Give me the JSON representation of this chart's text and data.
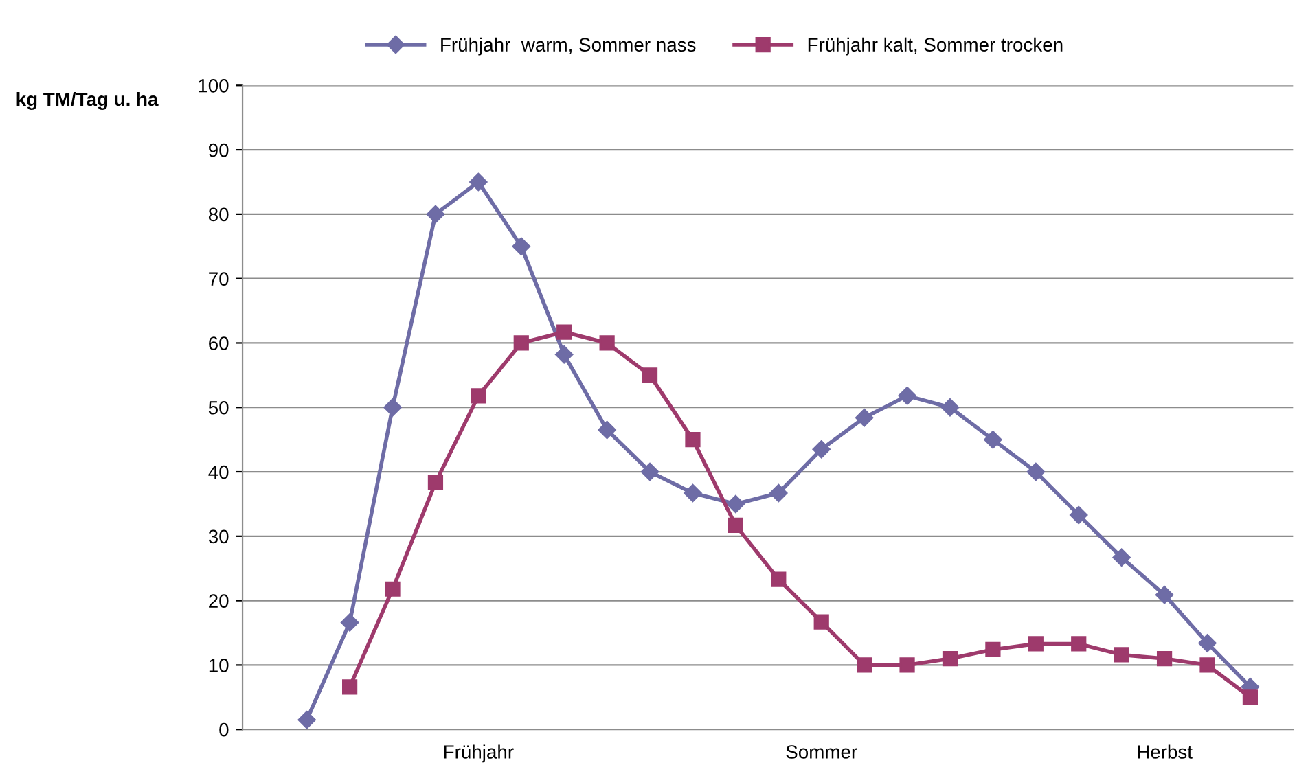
{
  "chart_data": {
    "type": "line",
    "ylabel": "kg TM/Tag u. ha",
    "categories": [
      null,
      null,
      null,
      null,
      "Frühjahr",
      null,
      null,
      null,
      null,
      null,
      null,
      null,
      "Sommer",
      null,
      null,
      null,
      null,
      null,
      null,
      null,
      "Herbst",
      null,
      null
    ],
    "series": [
      {
        "name": "Frühjahr  warm, Sommer nass",
        "color": "#6e6ca6",
        "marker": "diamond",
        "values": [
          1.5,
          16.6,
          50,
          80,
          85,
          75,
          58.2,
          46.5,
          40,
          36.7,
          35,
          36.7,
          43.5,
          48.4,
          51.8,
          50,
          45,
          40,
          33.3,
          26.7,
          20.9,
          13.4,
          6.6
        ]
      },
      {
        "name": "Frühjahr kalt, Sommer trocken",
        "color": "#9e3a6c",
        "marker": "square",
        "values": [
          null,
          6.6,
          21.8,
          38.3,
          51.8,
          60,
          61.7,
          60,
          55,
          45,
          31.7,
          23.3,
          16.7,
          10,
          10,
          11,
          12.4,
          13.3,
          13.3,
          11.6,
          11,
          10,
          5
        ]
      }
    ],
    "ylim": [
      0,
      100
    ],
    "yticks": [
      0,
      10,
      20,
      30,
      40,
      50,
      60,
      70,
      80,
      90,
      100
    ],
    "grid": "y",
    "legend": "top",
    "line_style": "solid"
  }
}
